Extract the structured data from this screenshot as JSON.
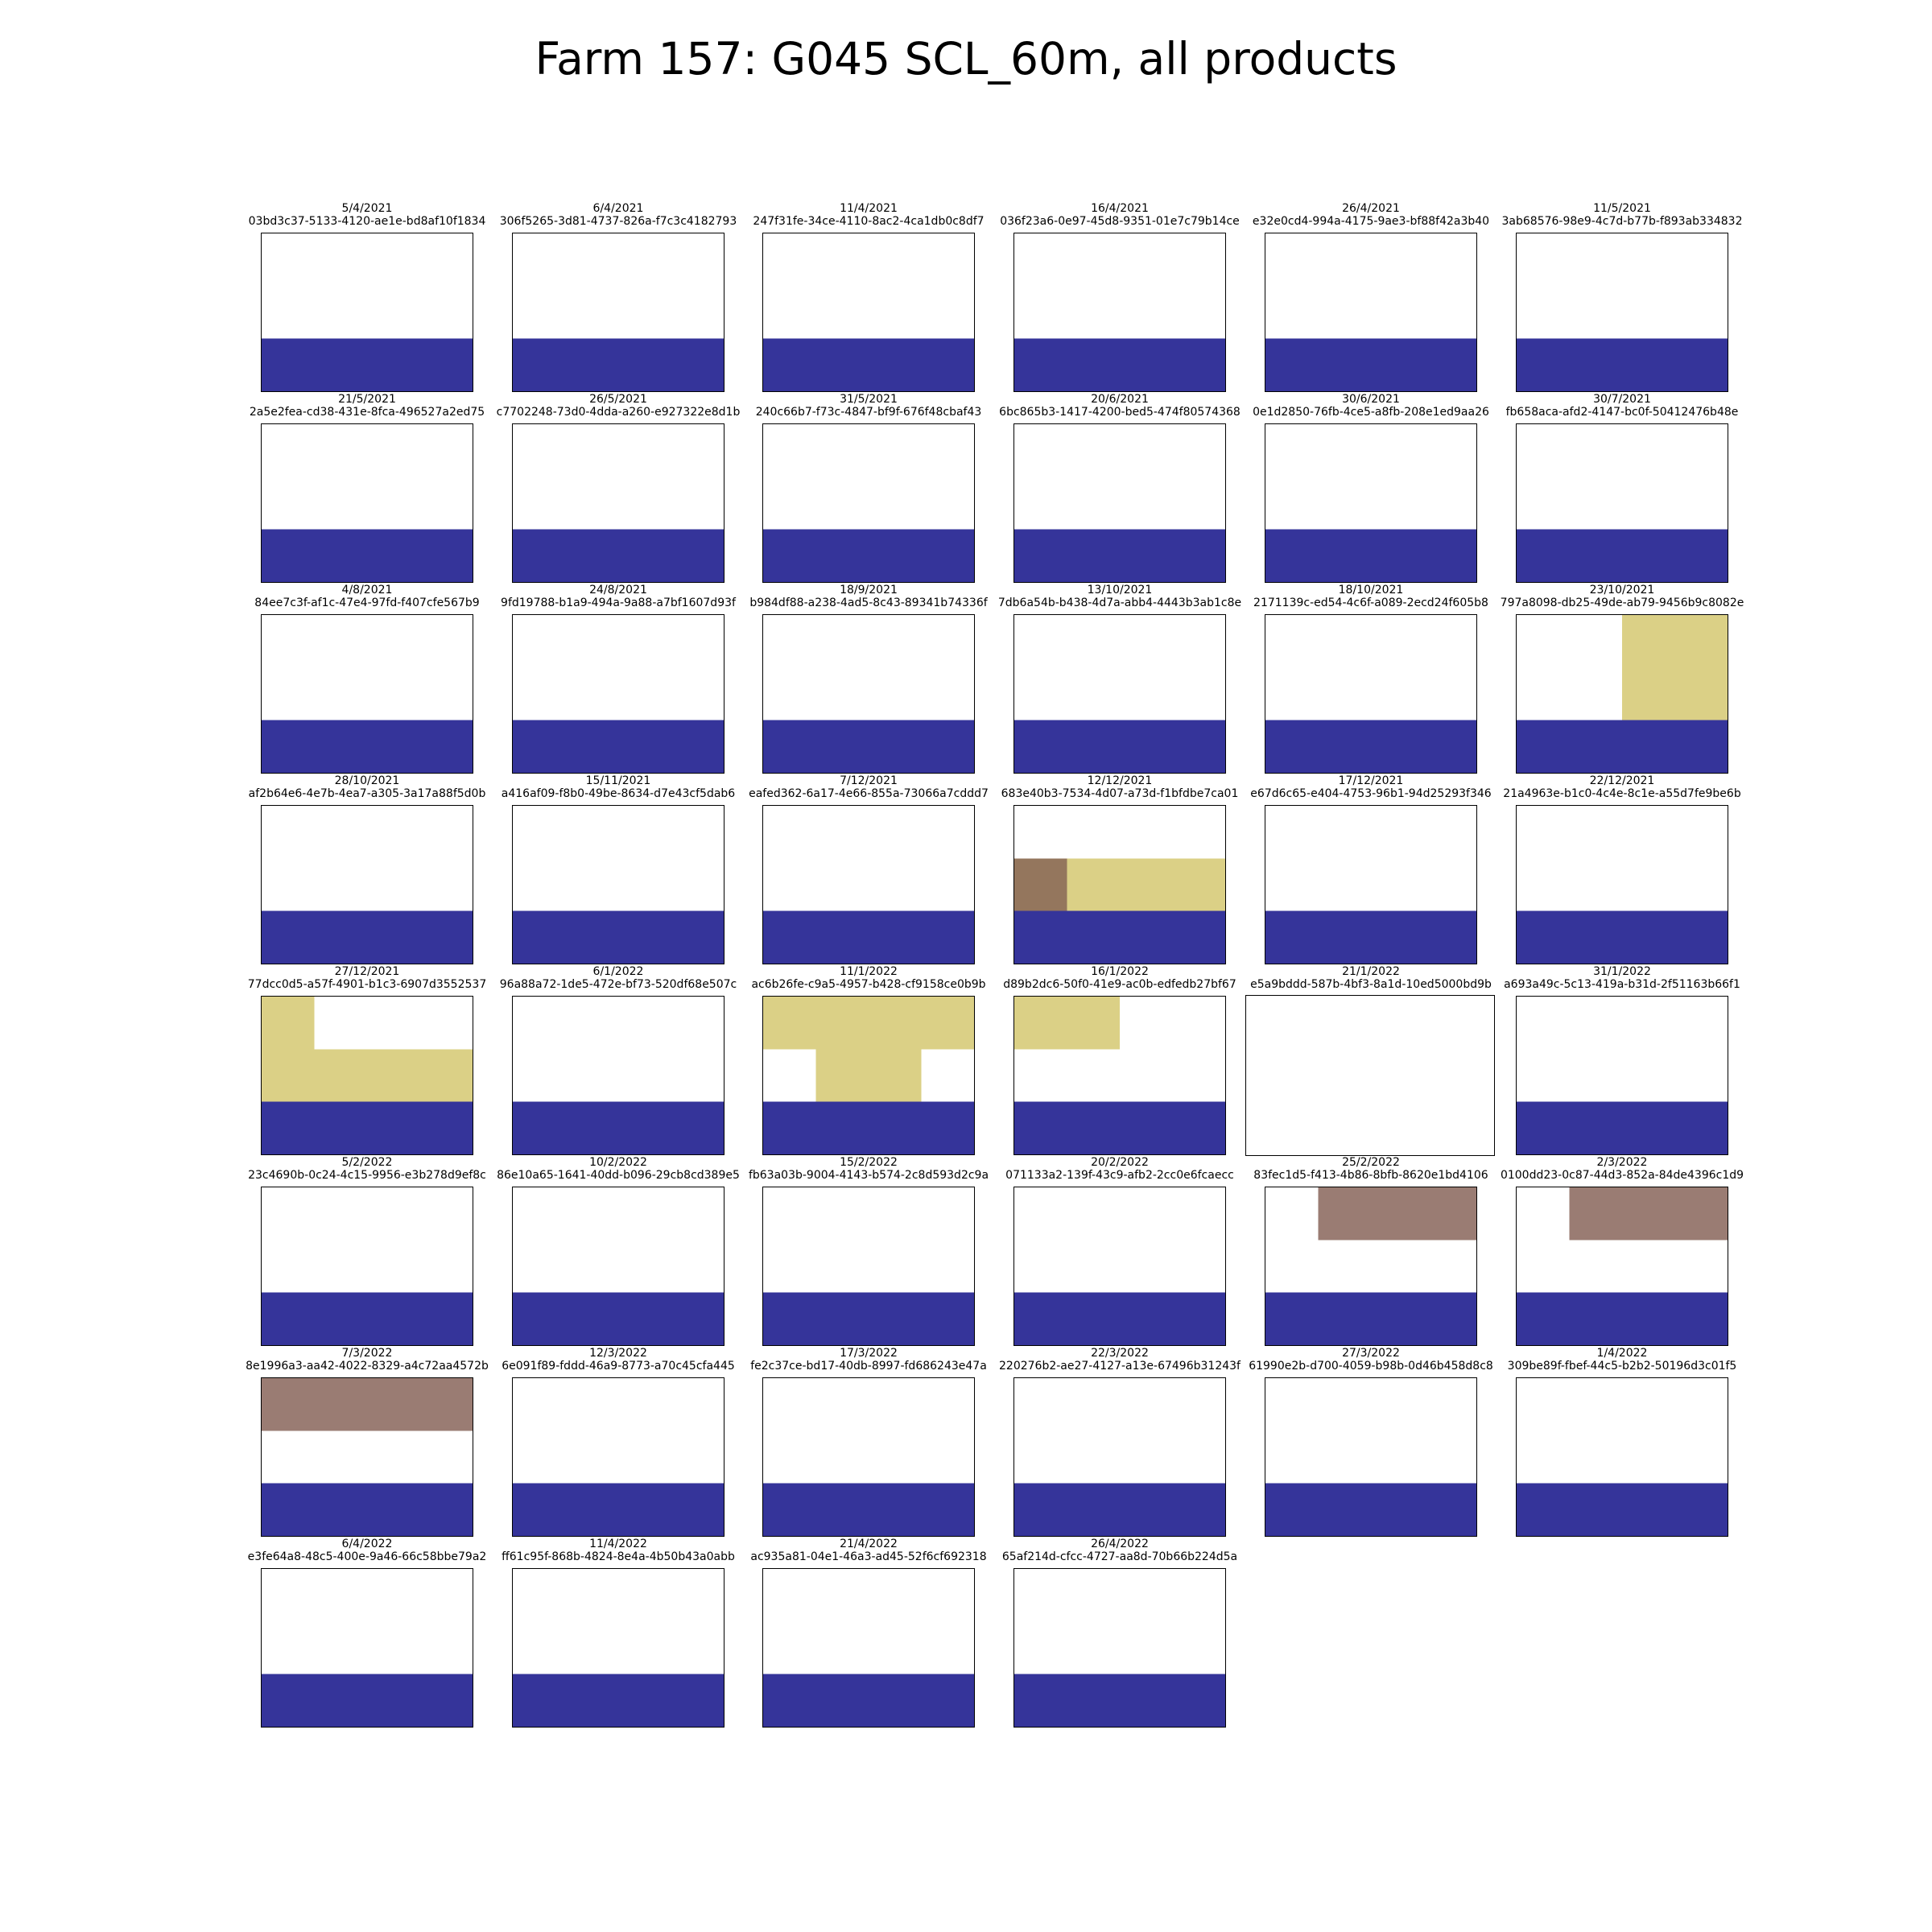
{
  "chart_data": {
    "type": "heatmap",
    "title": "Farm 157: G045 SCL_60m, all products",
    "palette": {
      "w": "#ffffff",
      "b": "#35349a",
      "y": "#dbd086",
      "d": "#94765d",
      "r": "#9a7c73"
    },
    "panels": [
      {
        "date": "5/4/2021",
        "id": "03bd3c37-5133-4120-ae1e-bd8af10f1834",
        "grid": [
          "wwww",
          "wwww",
          "bbbb"
        ]
      },
      {
        "date": "6/4/2021",
        "id": "306f5265-3d81-4737-826a-f7c3c4182793",
        "grid": [
          "wwww",
          "wwww",
          "bbbb"
        ]
      },
      {
        "date": "11/4/2021",
        "id": "247f31fe-34ce-4110-8ac2-4ca1db0c8df7",
        "grid": [
          "wwww",
          "wwww",
          "bbbb"
        ]
      },
      {
        "date": "16/4/2021",
        "id": "036f23a6-0e97-45d8-9351-01e7c79b14ce",
        "grid": [
          "wwww",
          "wwww",
          "bbbb"
        ]
      },
      {
        "date": "26/4/2021",
        "id": "e32e0cd4-994a-4175-9ae3-bf88f42a3b40",
        "grid": [
          "wwww",
          "wwww",
          "bbbb"
        ]
      },
      {
        "date": "11/5/2021",
        "id": "3ab68576-98e9-4c7d-b77b-f893ab334832",
        "grid": [
          "wwww",
          "wwww",
          "bbbb"
        ]
      },
      {
        "date": "21/5/2021",
        "id": "2a5e2fea-cd38-431e-8fca-496527a2ed75",
        "grid": [
          "wwww",
          "wwww",
          "bbbb"
        ]
      },
      {
        "date": "26/5/2021",
        "id": "c7702248-73d0-4dda-a260-e927322e8d1b",
        "grid": [
          "wwww",
          "wwww",
          "bbbb"
        ]
      },
      {
        "date": "31/5/2021",
        "id": "240c66b7-f73c-4847-bf9f-676f48cbaf43",
        "grid": [
          "wwww",
          "wwww",
          "bbbb"
        ]
      },
      {
        "date": "20/6/2021",
        "id": "6bc865b3-1417-4200-bed5-474f80574368",
        "grid": [
          "wwww",
          "wwww",
          "bbbb"
        ]
      },
      {
        "date": "30/6/2021",
        "id": "0e1d2850-76fb-4ce5-a8fb-208e1ed9aa26",
        "grid": [
          "wwww",
          "wwww",
          "bbbb"
        ]
      },
      {
        "date": "30/7/2021",
        "id": "fb658aca-afd2-4147-bc0f-50412476b48e",
        "grid": [
          "wwww",
          "wwww",
          "bbbb"
        ]
      },
      {
        "date": "4/8/2021",
        "id": "84ee7c3f-af1c-47e4-97fd-f407cfe567b9",
        "grid": [
          "wwww",
          "wwww",
          "bbbb"
        ]
      },
      {
        "date": "24/8/2021",
        "id": "9fd19788-b1a9-494a-9a88-a7bf1607d93f",
        "grid": [
          "wwww",
          "wwww",
          "bbbb"
        ]
      },
      {
        "date": "18/9/2021",
        "id": "b984df88-a238-4ad5-8c43-89341b74336f",
        "grid": [
          "wwww",
          "wwww",
          "bbbb"
        ]
      },
      {
        "date": "13/10/2021",
        "id": "7db6a54b-b438-4d7a-abb4-4443b3ab1c8e",
        "grid": [
          "wwww",
          "wwww",
          "bbbb"
        ]
      },
      {
        "date": "18/10/2021",
        "id": "2171139c-ed54-4c6f-a089-2ecd24f605b8",
        "grid": [
          "wwww",
          "wwww",
          "bbbb"
        ]
      },
      {
        "date": "23/10/2021",
        "id": "797a8098-db25-49de-ab79-9456b9c8082e",
        "grid": [
          "wwyy",
          "wwyy",
          "bbbb"
        ]
      },
      {
        "date": "28/10/2021",
        "id": "af2b64e6-4e7b-4ea7-a305-3a17a88f5d0b",
        "grid": [
          "wwww",
          "wwww",
          "bbbb"
        ]
      },
      {
        "date": "15/11/2021",
        "id": "a416af09-f8b0-49be-8634-d7e43cf5dab6",
        "grid": [
          "wwww",
          "wwww",
          "bbbb"
        ]
      },
      {
        "date": "7/12/2021",
        "id": "eafed362-6a17-4e66-855a-73066a7cddd7",
        "grid": [
          "wwww",
          "wwww",
          "bbbb"
        ]
      },
      {
        "date": "12/12/2021",
        "id": "683e40b3-7534-4d07-a73d-f1bfdbe7ca01",
        "grid": [
          "wwww",
          "dyyy",
          "bbbb"
        ]
      },
      {
        "date": "17/12/2021",
        "id": "e67d6c65-e404-4753-96b1-94d25293f346",
        "grid": [
          "wwww",
          "wwww",
          "bbbb"
        ]
      },
      {
        "date": "22/12/2021",
        "id": "21a4963e-b1c0-4c4e-8c1e-a55d7fe9be6b",
        "grid": [
          "wwww",
          "wwww",
          "bbbb"
        ]
      },
      {
        "date": "27/12/2021",
        "id": "77dcc0d5-a57f-4901-b1c3-6907d3552537",
        "grid": [
          "ywww",
          "yyyy",
          "bbbb"
        ]
      },
      {
        "date": "6/1/2022",
        "id": "96a88a72-1de5-472e-bf73-520df68e507c",
        "grid": [
          "wwww",
          "wwww",
          "bbbb"
        ]
      },
      {
        "date": "11/1/2022",
        "id": "ac6b26fe-c9a5-4957-b428-cf9158ce0b9b",
        "grid": [
          "yyyy",
          "wyyw",
          "bbbb"
        ]
      },
      {
        "date": "16/1/2022",
        "id": "d89b2dc6-50f0-41e9-ac0b-edfedb27bf67",
        "grid": [
          "yyww",
          "wwww",
          "bbbb"
        ]
      },
      {
        "date": "21/1/2022",
        "id": "e5a9bddd-587b-4bf3-8a1d-10ed5000bd9b",
        "grid": [
          "wwww",
          "wwww",
          "wwww"
        ]
      },
      {
        "date": "31/1/2022",
        "id": "a693a49c-5c13-419a-b31d-2f51163b66f1",
        "grid": [
          "wwww",
          "wwww",
          "bbbb"
        ]
      },
      {
        "date": "5/2/2022",
        "id": "23c4690b-0c24-4c15-9956-e3b278d9ef8c",
        "grid": [
          "wwww",
          "wwww",
          "bbbb"
        ]
      },
      {
        "date": "10/2/2022",
        "id": "86e10a65-1641-40dd-b096-29cb8cd389e5",
        "grid": [
          "wwww",
          "wwww",
          "bbbb"
        ]
      },
      {
        "date": "15/2/2022",
        "id": "fb63a03b-9004-4143-b574-2c8d593d2c9a",
        "grid": [
          "wwww",
          "wwww",
          "bbbb"
        ]
      },
      {
        "date": "20/2/2022",
        "id": "071133a2-139f-43c9-afb2-2cc0e6fcaecc",
        "grid": [
          "wwww",
          "wwww",
          "bbbb"
        ]
      },
      {
        "date": "25/2/2022",
        "id": "83fec1d5-f413-4b86-8bfb-8620e1bd4106",
        "grid": [
          "wrrr",
          "wwww",
          "bbbb"
        ]
      },
      {
        "date": "2/3/2022",
        "id": "0100dd23-0c87-44d3-852a-84de4396c1d9",
        "grid": [
          "wrrr",
          "wwww",
          "bbbb"
        ]
      },
      {
        "date": "7/3/2022",
        "id": "8e1996a3-aa42-4022-8329-a4c72aa4572b",
        "grid": [
          "rrrr",
          "wwww",
          "bbbb"
        ]
      },
      {
        "date": "12/3/2022",
        "id": "6e091f89-fddd-46a9-8773-a70c45cfa445",
        "grid": [
          "wwww",
          "wwww",
          "bbbb"
        ]
      },
      {
        "date": "17/3/2022",
        "id": "fe2c37ce-bd17-40db-8997-fd686243e47a",
        "grid": [
          "wwww",
          "wwww",
          "bbbb"
        ]
      },
      {
        "date": "22/3/2022",
        "id": "220276b2-ae27-4127-a13e-67496b31243f",
        "grid": [
          "wwww",
          "wwww",
          "bbbb"
        ]
      },
      {
        "date": "27/3/2022",
        "id": "61990e2b-d700-4059-b98b-0d46b458d8c8",
        "grid": [
          "wwww",
          "wwww",
          "bbbb"
        ]
      },
      {
        "date": "1/4/2022",
        "id": "309be89f-fbef-44c5-b2b2-50196d3c01f5",
        "grid": [
          "wwww",
          "wwww",
          "bbbb"
        ]
      },
      {
        "date": "6/4/2022",
        "id": "e3fe64a8-48c5-400e-9a46-66c58bbe79a2",
        "grid": [
          "wwww",
          "wwww",
          "bbbb"
        ]
      },
      {
        "date": "11/4/2022",
        "id": "ff61c95f-868b-4824-8e4a-4b50b43a0abb",
        "grid": [
          "wwww",
          "wwww",
          "bbbb"
        ]
      },
      {
        "date": "21/4/2022",
        "id": "ac935a81-04e1-46a3-ad45-52f6cf692318",
        "grid": [
          "wwww",
          "wwww",
          "bbbb"
        ]
      },
      {
        "date": "26/4/2022",
        "id": "65af214d-cfcc-4727-aa8d-70b66b224d5a",
        "grid": [
          "wwww",
          "wwww",
          "bbbb"
        ]
      }
    ]
  }
}
